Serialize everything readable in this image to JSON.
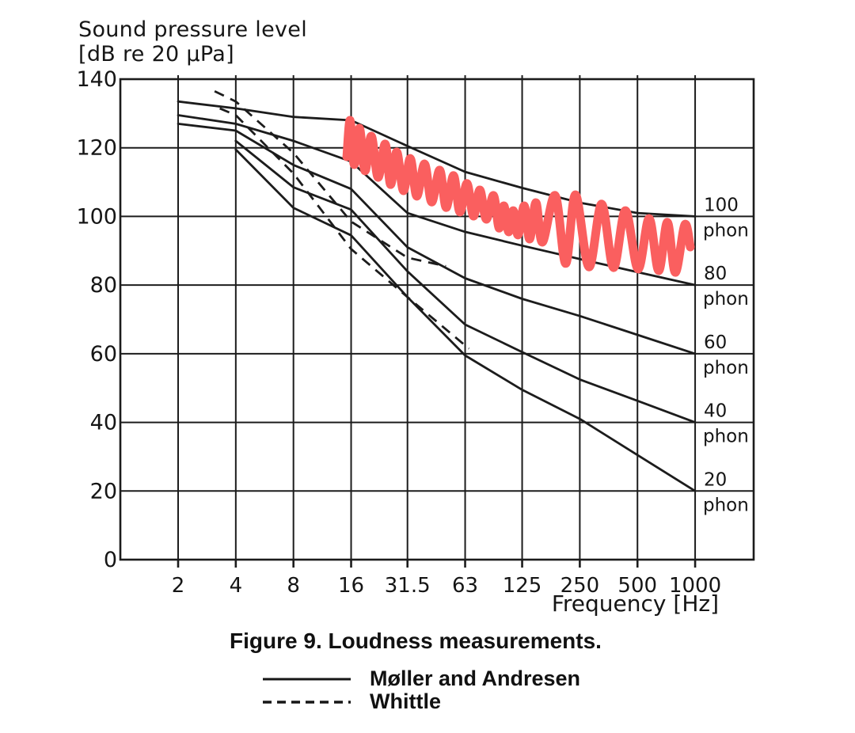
{
  "page": {
    "background": "#ffffff",
    "ink": "#1c1c1c",
    "annotation_color": "#fa5f5f"
  },
  "y_axis_title": {
    "line1": "Sound pressure level",
    "line2": "[dB re 20 µPa]"
  },
  "x_axis_title": "Frequency [Hz]",
  "caption": "Figure 9. Loudness measurements.",
  "legend": {
    "items": [
      {
        "style": "solid",
        "label": "Møller and Andresen"
      },
      {
        "style": "dashed",
        "label": "Whittle"
      }
    ]
  },
  "chart_data": {
    "type": "line",
    "title": "Figure 9. Loudness measurements.",
    "x_scale": "log",
    "grid": true,
    "xlabel": "Frequency [Hz]",
    "ylabel": "Sound pressure level [dB re 20 µPa]",
    "xlim": [
      1,
      2000
    ],
    "ylim": [
      0,
      140
    ],
    "x_ticks": [
      {
        "hz": 2,
        "label": "2"
      },
      {
        "hz": 4,
        "label": "4"
      },
      {
        "hz": 8,
        "label": "8"
      },
      {
        "hz": 16,
        "label": "16"
      },
      {
        "hz": 31.5,
        "label": "31.5"
      },
      {
        "hz": 63,
        "label": "63"
      },
      {
        "hz": 125,
        "label": "125"
      },
      {
        "hz": 250,
        "label": "250"
      },
      {
        "hz": 500,
        "label": "500"
      },
      {
        "hz": 1000,
        "label": "1000"
      }
    ],
    "y_ticks": [
      {
        "db": 0,
        "label": "0"
      },
      {
        "db": 20,
        "label": "20"
      },
      {
        "db": 40,
        "label": "40"
      },
      {
        "db": 60,
        "label": "60"
      },
      {
        "db": 80,
        "label": "80"
      },
      {
        "db": 100,
        "label": "100"
      },
      {
        "db": 120,
        "label": "120"
      },
      {
        "db": 140,
        "label": "140"
      }
    ],
    "right_labels": [
      {
        "value": "100",
        "unit": "phon",
        "db": 100
      },
      {
        "value": "80",
        "unit": "phon",
        "db": 80
      },
      {
        "value": "60",
        "unit": "phon",
        "db": 60
      },
      {
        "value": "40",
        "unit": "phon",
        "db": 40
      },
      {
        "value": "20",
        "unit": "phon",
        "db": 20
      }
    ],
    "series": [
      {
        "name": "Møller and Andresen 100 phon",
        "source": "Møller and Andresen",
        "phon": 100,
        "style": "solid",
        "points_hz_db": [
          [
            2,
            133.5
          ],
          [
            4,
            131.5
          ],
          [
            8,
            129
          ],
          [
            16,
            128
          ],
          [
            31.5,
            120.5
          ],
          [
            63,
            113
          ],
          [
            125,
            108.3
          ],
          [
            250,
            104
          ],
          [
            500,
            101
          ],
          [
            1000,
            100
          ]
        ]
      },
      {
        "name": "Møller and Andresen 80 phon",
        "source": "Møller and Andresen",
        "phon": 80,
        "style": "solid",
        "points_hz_db": [
          [
            2,
            129.5
          ],
          [
            4,
            127
          ],
          [
            8,
            122
          ],
          [
            16,
            116
          ],
          [
            31.5,
            101
          ],
          [
            63,
            95.5
          ],
          [
            125,
            91.5
          ],
          [
            250,
            87.6
          ],
          [
            500,
            83.8
          ],
          [
            1000,
            80
          ]
        ]
      },
      {
        "name": "Møller and Andresen 60 phon",
        "source": "Møller and Andresen",
        "phon": 60,
        "style": "solid",
        "points_hz_db": [
          [
            2,
            127
          ],
          [
            4,
            125
          ],
          [
            8,
            115
          ],
          [
            16,
            108
          ],
          [
            31.5,
            91
          ],
          [
            63,
            82
          ],
          [
            125,
            76
          ],
          [
            250,
            71
          ],
          [
            500,
            65.5
          ],
          [
            1000,
            60
          ]
        ]
      },
      {
        "name": "Møller and Andresen 40 phon",
        "source": "Møller and Andresen",
        "phon": 40,
        "style": "solid",
        "points_hz_db": [
          [
            4,
            122
          ],
          [
            8,
            108.5
          ],
          [
            16,
            102
          ],
          [
            31.5,
            84
          ],
          [
            63,
            68.5
          ],
          [
            125,
            60.5
          ],
          [
            250,
            52.5
          ],
          [
            500,
            46.3
          ],
          [
            1000,
            40
          ]
        ]
      },
      {
        "name": "Møller and Andresen 20 phon",
        "source": "Møller and Andresen",
        "phon": 20,
        "style": "solid",
        "points_hz_db": [
          [
            4,
            119.5
          ],
          [
            8,
            102.5
          ],
          [
            16,
            94.5
          ],
          [
            31.5,
            76.5
          ],
          [
            63,
            59.5
          ],
          [
            125,
            49.5
          ],
          [
            250,
            41
          ],
          [
            500,
            30.5
          ],
          [
            1000,
            20
          ]
        ]
      },
      {
        "name": "Whittle upper",
        "source": "Whittle",
        "style": "dashed",
        "points_hz_db": [
          [
            3.1,
            136.5
          ],
          [
            4,
            133.5
          ],
          [
            8,
            118.5
          ],
          [
            16,
            98.5
          ],
          [
            31.5,
            88
          ],
          [
            50,
            85.5
          ]
        ]
      },
      {
        "name": "Whittle lower",
        "source": "Whittle",
        "style": "dashed",
        "points_hz_db": [
          [
            3.3,
            131.5
          ],
          [
            4,
            129.5
          ],
          [
            8,
            112.5
          ],
          [
            16,
            90.5
          ],
          [
            31.5,
            76.5
          ],
          [
            66,
            61.5
          ]
        ]
      }
    ],
    "annotation": {
      "type": "hand-drawn-squiggle",
      "color": "#fa5f5f",
      "stroke_width": 11,
      "points_hz_db": [
        [
          15.2,
          117.4
        ],
        [
          15.8,
          128.0
        ],
        [
          16.6,
          115.1
        ],
        [
          17.7,
          125.7
        ],
        [
          18.9,
          113.3
        ],
        [
          20.4,
          123.4
        ],
        [
          22.1,
          111.4
        ],
        [
          24.1,
          121.1
        ],
        [
          25.7,
          109.3
        ],
        [
          27.7,
          118.8
        ],
        [
          30.0,
          107.5
        ],
        [
          32.6,
          116.9
        ],
        [
          35.2,
          105.9
        ],
        [
          38.7,
          115.3
        ],
        [
          42.1,
          104.2
        ],
        [
          46.4,
          113.5
        ],
        [
          50.1,
          102.6
        ],
        [
          54.8,
          111.9
        ],
        [
          59.1,
          101.3
        ],
        [
          64.4,
          109.6
        ],
        [
          69.6,
          100.1
        ],
        [
          75.2,
          107.7
        ],
        [
          81.2,
          99.2
        ],
        [
          88.6,
          106.1
        ],
        [
          94.7,
          96.6
        ],
        [
          100.4,
          103.1
        ],
        [
          106.3,
          95.5
        ],
        [
          112.4,
          101.7
        ],
        [
          119.0,
          94.6
        ],
        [
          128.2,
          103.1
        ],
        [
          136.7,
          93.4
        ],
        [
          147.6,
          104.0
        ],
        [
          159.5,
          92.5
        ],
        [
          186.0,
          106.1
        ],
        [
          211.0,
          86.3
        ],
        [
          237.3,
          106.3
        ],
        [
          279.0,
          85.3
        ],
        [
          324.9,
          103.6
        ],
        [
          374.8,
          85.1
        ],
        [
          432.5,
          101.7
        ],
        [
          503.3,
          84.7
        ],
        [
          575.0,
          99.4
        ],
        [
          644.9,
          84.2
        ],
        [
          716.0,
          98.3
        ],
        [
          787.8,
          83.7
        ],
        [
          883.1,
          97.6
        ],
        [
          943.5,
          91.1
        ]
      ]
    }
  }
}
